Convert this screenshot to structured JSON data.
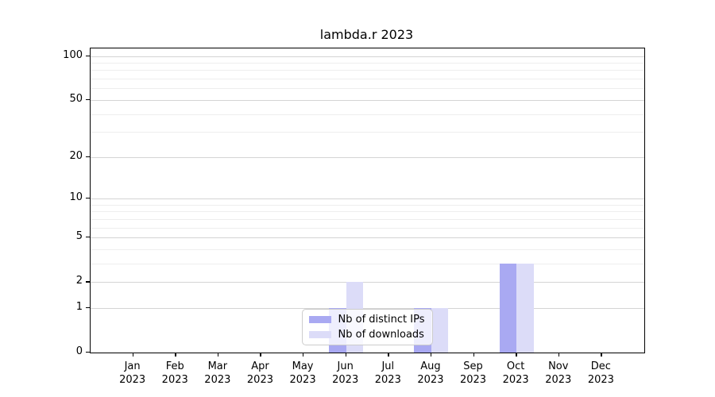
{
  "figure": {
    "title": "lambda.r 2023",
    "background": "#ffffff"
  },
  "chart_data": {
    "type": "bar",
    "title": "lambda.r 2023",
    "xlabel": "",
    "ylabel": "",
    "categories": [
      "Jan 2023",
      "Feb 2023",
      "Mar 2023",
      "Apr 2023",
      "May 2023",
      "Jun 2023",
      "Jul 2023",
      "Aug 2023",
      "Sep 2023",
      "Oct 2023",
      "Nov 2023",
      "Dec 2023"
    ],
    "series": [
      {
        "name": "Nb of distinct IPs",
        "color": "#a9a9f2",
        "values": [
          0,
          0,
          0,
          0,
          0,
          1,
          0,
          1,
          0,
          3,
          0,
          0
        ]
      },
      {
        "name": "Nb of downloads",
        "color": "#dcdcf8",
        "values": [
          0,
          0,
          0,
          0,
          0,
          2,
          0,
          1,
          0,
          3,
          0,
          0
        ]
      }
    ],
    "yscale": "log1p",
    "ylim": [
      0,
      113
    ],
    "y_major_ticks": [
      0,
      1,
      2,
      5,
      10,
      20,
      50,
      100
    ],
    "y_minor_gridlines": [
      3,
      4,
      6,
      7,
      8,
      9,
      30,
      40,
      60,
      70,
      80,
      90
    ],
    "grid": true,
    "grid_major_color": "#d4d4d4",
    "grid_minor_color": "#eeeeee",
    "legend_position": "lower center",
    "legend_background": "rgba(255,255,255,0.8)"
  }
}
